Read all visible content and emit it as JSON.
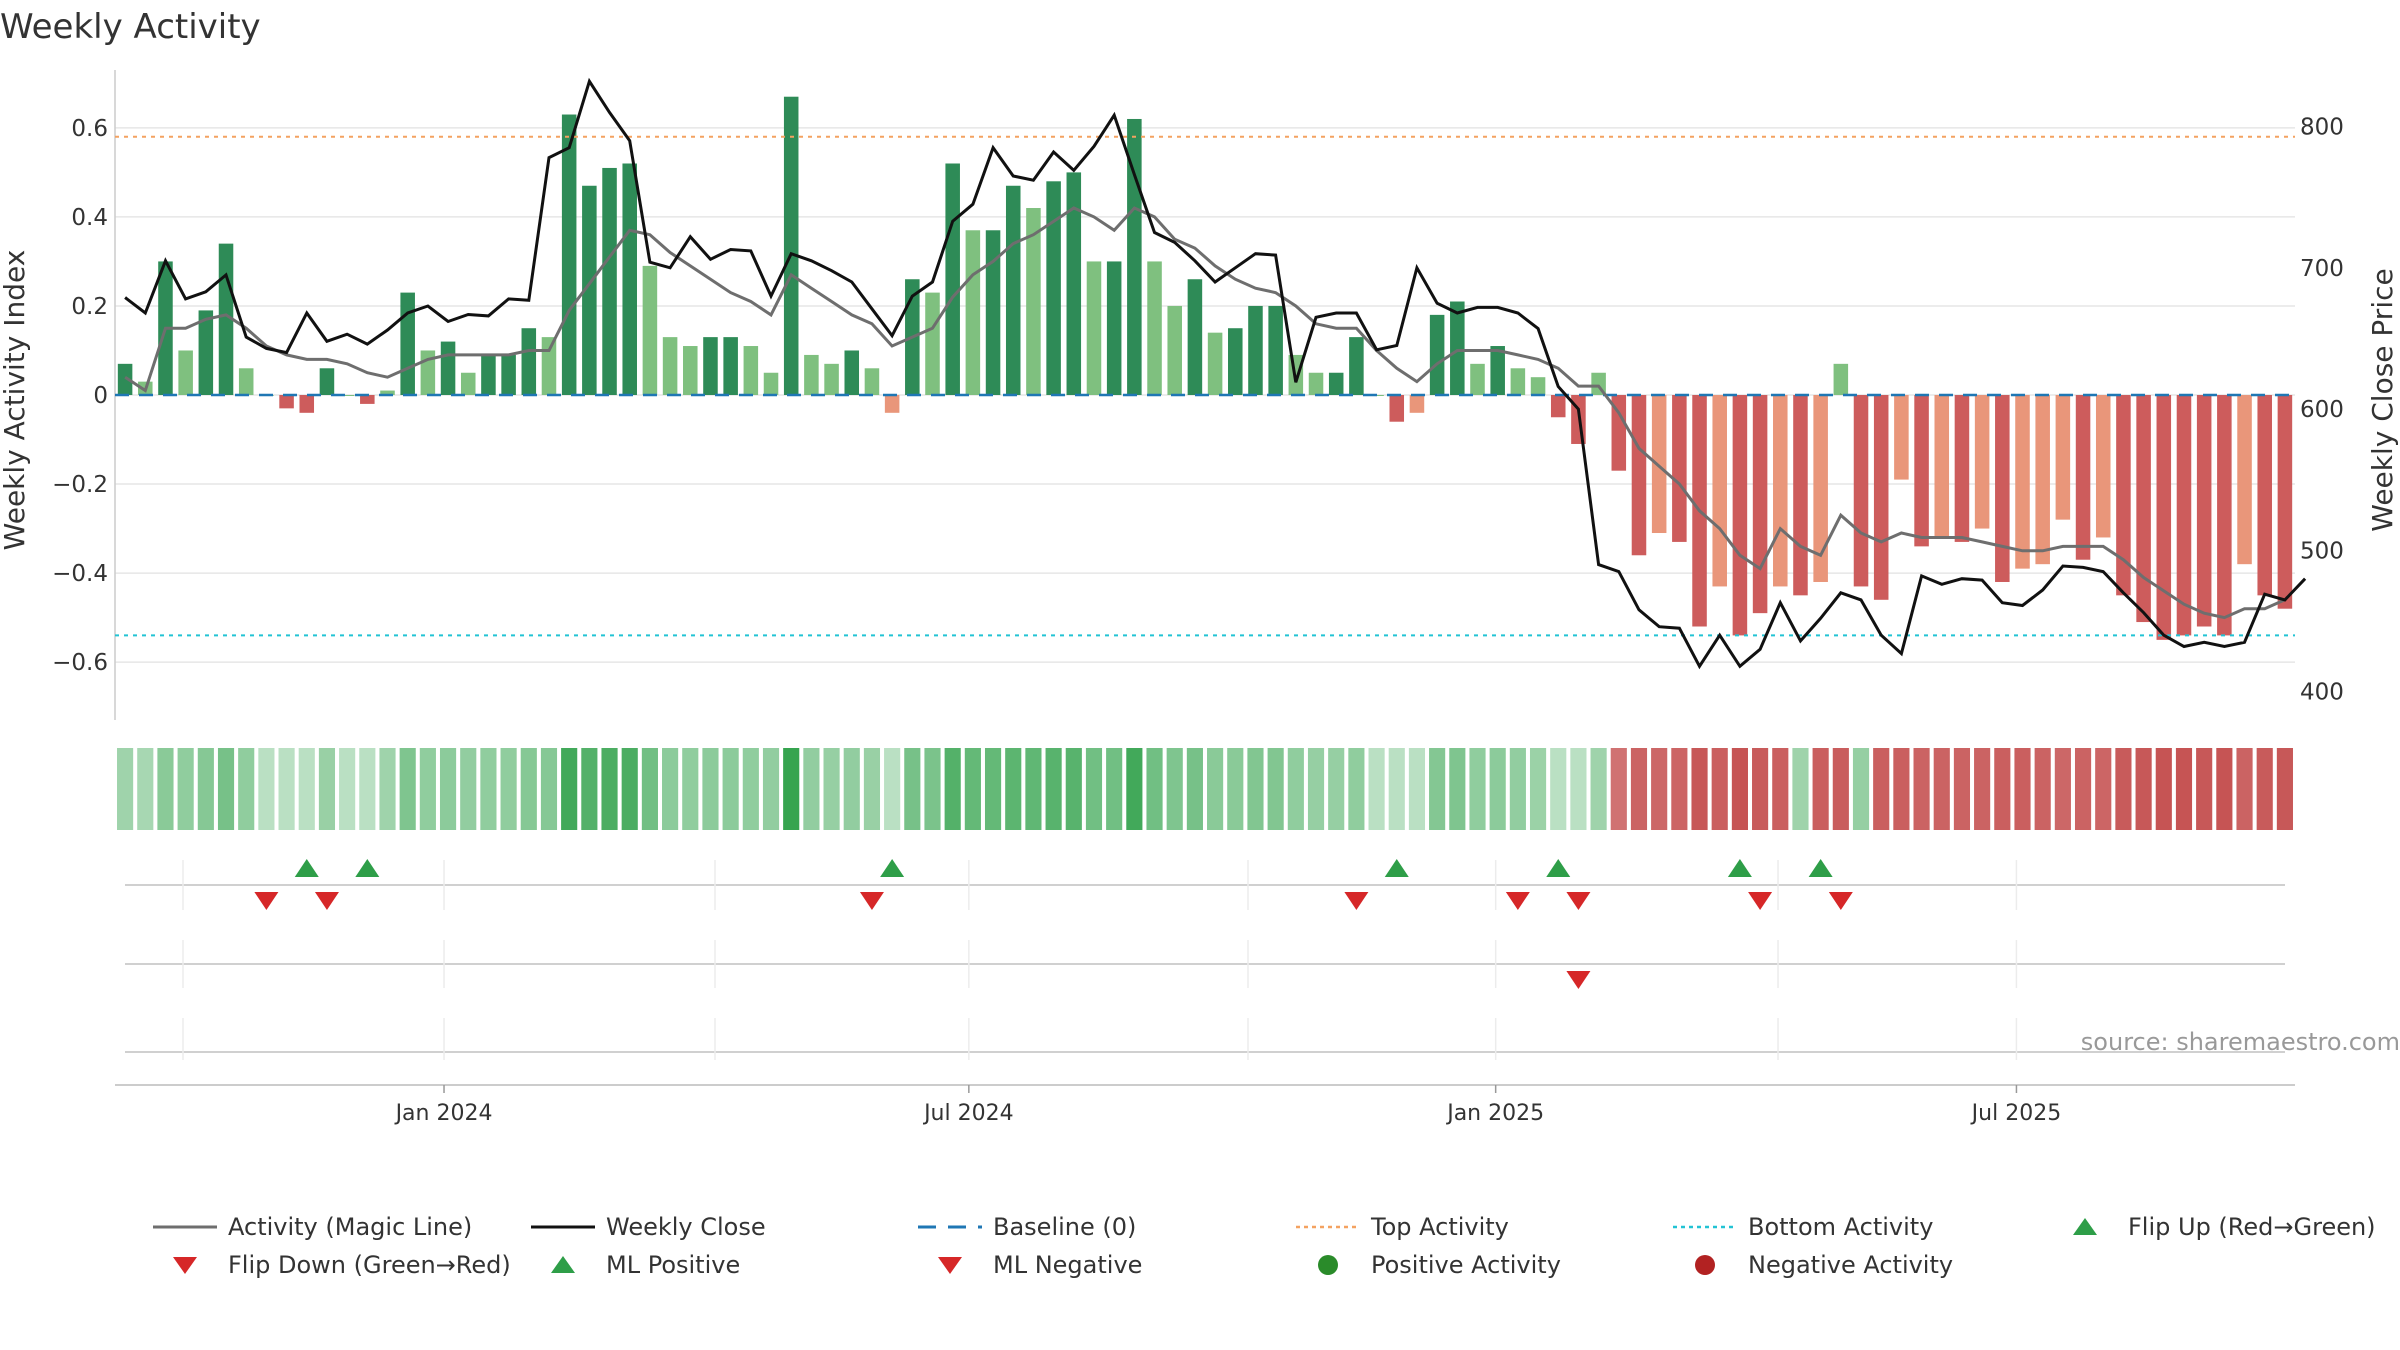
{
  "chart_data": {
    "type": "bar",
    "title": "Weekly Activity",
    "ylabel": "Weekly Activity Index",
    "y2label": "Weekly Close Price",
    "source": "source: sharemaestro.com",
    "ylim": [
      -0.73,
      0.73
    ],
    "y2lim": [
      380,
      840
    ],
    "yticks": [
      {
        "v": 0.6,
        "label": "0.6"
      },
      {
        "v": 0.4,
        "label": "0.4"
      },
      {
        "v": 0.2,
        "label": "0.2"
      },
      {
        "v": 0,
        "label": "0"
      },
      {
        "v": -0.2,
        "label": "−0.2"
      },
      {
        "v": -0.4,
        "label": "−0.4"
      },
      {
        "v": -0.6,
        "label": "−0.6"
      }
    ],
    "y2ticks": [
      {
        "v": 800,
        "label": "800"
      },
      {
        "v": 700,
        "label": "700"
      },
      {
        "v": 600,
        "label": "600"
      },
      {
        "v": 500,
        "label": "500"
      },
      {
        "v": 400,
        "label": "400"
      }
    ],
    "xticks": [
      {
        "w": 16.3,
        "label": "Jan 2024"
      },
      {
        "w": 42.3,
        "label": "Jul 2024"
      },
      {
        "w": 68.4,
        "label": "Jan 2025"
      },
      {
        "w": 94.2,
        "label": "Jul 2025"
      }
    ],
    "top_activity": 0.58,
    "bottom_activity": -0.54,
    "activity": [
      0.07,
      0.03,
      0.3,
      0.1,
      0.19,
      0.34,
      0.06,
      0.0,
      -0.03,
      -0.04,
      0.06,
      0.0,
      -0.02,
      0.01,
      0.23,
      0.1,
      0.12,
      0.05,
      0.09,
      0.09,
      0.15,
      0.13,
      0.63,
      0.47,
      0.51,
      0.52,
      0.29,
      0.13,
      0.11,
      0.13,
      0.13,
      0.11,
      0.05,
      0.67,
      0.09,
      0.07,
      0.1,
      0.06,
      -0.04,
      0.26,
      0.23,
      0.52,
      0.37,
      0.37,
      0.47,
      0.42,
      0.48,
      0.5,
      0.3,
      0.3,
      0.62,
      0.3,
      0.2,
      0.26,
      0.14,
      0.15,
      0.2,
      0.2,
      0.09,
      0.05,
      0.05,
      0.13,
      0.0,
      -0.06,
      -0.04,
      0.18,
      0.21,
      0.07,
      0.11,
      0.06,
      0.04,
      -0.05,
      -0.11,
      0.05,
      -0.17,
      -0.36,
      -0.31,
      -0.33,
      -0.52,
      -0.43,
      -0.54,
      -0.49,
      -0.43,
      -0.45,
      -0.42,
      0.07,
      -0.43,
      -0.46,
      -0.19,
      -0.34,
      -0.32,
      -0.33,
      -0.3,
      -0.42,
      -0.39,
      -0.38,
      -0.28,
      -0.37,
      -0.32,
      -0.45,
      -0.51,
      -0.55,
      -0.54,
      -0.52,
      -0.54,
      -0.38,
      -0.45,
      -0.48
    ],
    "magic_line": [
      0.04,
      0.01,
      0.15,
      0.15,
      0.17,
      0.18,
      0.15,
      0.11,
      0.09,
      0.08,
      0.08,
      0.07,
      0.05,
      0.04,
      0.06,
      0.08,
      0.09,
      0.09,
      0.09,
      0.09,
      0.1,
      0.1,
      0.19,
      0.25,
      0.31,
      0.37,
      0.36,
      0.32,
      0.29,
      0.26,
      0.23,
      0.21,
      0.18,
      0.27,
      0.24,
      0.21,
      0.18,
      0.16,
      0.11,
      0.13,
      0.15,
      0.22,
      0.27,
      0.3,
      0.34,
      0.36,
      0.39,
      0.42,
      0.4,
      0.37,
      0.42,
      0.4,
      0.35,
      0.33,
      0.29,
      0.26,
      0.24,
      0.23,
      0.2,
      0.16,
      0.15,
      0.15,
      0.1,
      0.06,
      0.03,
      0.07,
      0.1,
      0.1,
      0.1,
      0.09,
      0.08,
      0.06,
      0.02,
      0.02,
      -0.04,
      -0.12,
      -0.16,
      -0.2,
      -0.26,
      -0.3,
      -0.36,
      -0.39,
      -0.3,
      -0.34,
      -0.36,
      -0.27,
      -0.31,
      -0.33,
      -0.31,
      -0.32,
      -0.32,
      -0.32,
      -0.33,
      -0.34,
      -0.35,
      -0.35,
      -0.34,
      -0.34,
      -0.34,
      -0.37,
      -0.41,
      -0.44,
      -0.47,
      -0.49,
      -0.5,
      -0.48,
      -0.48,
      -0.46
    ],
    "weekly_close": [
      679,
      668,
      705,
      678,
      683,
      695,
      651,
      643,
      640,
      668,
      648,
      653,
      646,
      656,
      668,
      673,
      662,
      667,
      666,
      678,
      677,
      778,
      785,
      832,
      810,
      790,
      704,
      700,
      722,
      706,
      713,
      712,
      680,
      710,
      705,
      698,
      690,
      671,
      652,
      680,
      690,
      733,
      745,
      785,
      765,
      762,
      782,
      769,
      786,
      808,
      766,
      725,
      718,
      705,
      690,
      700,
      710,
      709,
      619,
      665,
      668,
      668,
      642,
      645,
      700,
      675,
      668,
      672,
      672,
      668,
      657,
      616,
      600,
      490,
      485,
      458,
      446,
      445,
      418,
      440,
      418,
      430,
      463,
      436,
      452,
      470,
      465,
      440,
      427,
      482,
      476,
      480,
      479,
      463,
      461,
      472,
      489,
      488,
      485,
      470,
      456,
      440,
      432,
      435,
      432,
      435,
      469,
      465,
      480
    ],
    "color_strip": [
      0.22,
      0.18,
      0.33,
      0.3,
      0.35,
      0.42,
      0.3,
      0.08,
      0.08,
      0.08,
      0.25,
      0.08,
      0.08,
      0.22,
      0.38,
      0.3,
      0.32,
      0.28,
      0.3,
      0.3,
      0.35,
      0.35,
      0.68,
      0.6,
      0.64,
      0.64,
      0.45,
      0.32,
      0.3,
      0.32,
      0.32,
      0.3,
      0.28,
      0.75,
      0.28,
      0.26,
      0.28,
      0.25,
      0.08,
      0.42,
      0.4,
      0.6,
      0.52,
      0.52,
      0.56,
      0.54,
      0.58,
      0.58,
      0.45,
      0.45,
      0.68,
      0.45,
      0.38,
      0.42,
      0.33,
      0.33,
      0.37,
      0.37,
      0.3,
      0.26,
      0.26,
      0.3,
      0.08,
      0.08,
      0.08,
      0.36,
      0.38,
      0.3,
      0.32,
      0.28,
      0.24,
      0.08,
      0.08,
      0.22,
      -0.5,
      -0.58,
      -0.56,
      -0.57,
      -0.64,
      -0.6,
      -0.66,
      -0.62,
      -0.6,
      0.22,
      -0.6,
      -0.61,
      0.26,
      -0.6,
      -0.6,
      -0.58,
      -0.58,
      -0.58,
      -0.58,
      -0.6,
      -0.6,
      -0.58,
      -0.56,
      -0.58,
      -0.57,
      -0.62,
      -0.64,
      -0.66,
      -0.66,
      -0.64,
      -0.66,
      -0.58,
      -0.62,
      -0.64
    ],
    "flip_up": [
      9,
      12,
      38,
      63,
      71,
      80,
      84
    ],
    "flip_down": [
      7,
      10,
      37,
      61,
      69,
      72,
      81,
      85
    ],
    "ml_negative": [
      72
    ],
    "legend": [
      {
        "label": "Activity (Magic Line)",
        "symbol": "line",
        "color": "#6e6e6e"
      },
      {
        "label": "Weekly Close",
        "symbol": "line",
        "color": "#111111"
      },
      {
        "label": "Baseline (0)",
        "symbol": "dash",
        "color": "#1f77b4"
      },
      {
        "label": "Top Activity",
        "symbol": "dot",
        "color": "#f4a261"
      },
      {
        "label": "Bottom Activity",
        "symbol": "dot",
        "color": "#22c3d4"
      },
      {
        "label": "Flip Up (Red→Green)",
        "symbol": "triangle-up",
        "color": "#2e9e48"
      },
      {
        "label": "Flip Down (Green→Red)",
        "symbol": "triangle-down",
        "color": "#d62728"
      },
      {
        "label": "ML Positive",
        "symbol": "triangle-up",
        "color": "#2e9e48"
      },
      {
        "label": "ML Negative",
        "symbol": "triangle-down",
        "color": "#d62728"
      },
      {
        "label": "Positive Activity",
        "symbol": "circle",
        "color": "#2a8b2a"
      },
      {
        "label": "Negative Activity",
        "symbol": "circle",
        "color": "#b22222"
      }
    ],
    "colors": {
      "pos_strong": "#2e8b57",
      "pos_weak": "#7fc07f",
      "neg_strong": "#cd5c5c",
      "neg_weak": "#e9967a",
      "magic_line": "#6e6e6e",
      "close": "#111111",
      "baseline": "#1f77b4",
      "top": "#f4a261",
      "bottom": "#22c3d4",
      "grid": "#e6e6e6",
      "axis": "#cccccc"
    }
  }
}
